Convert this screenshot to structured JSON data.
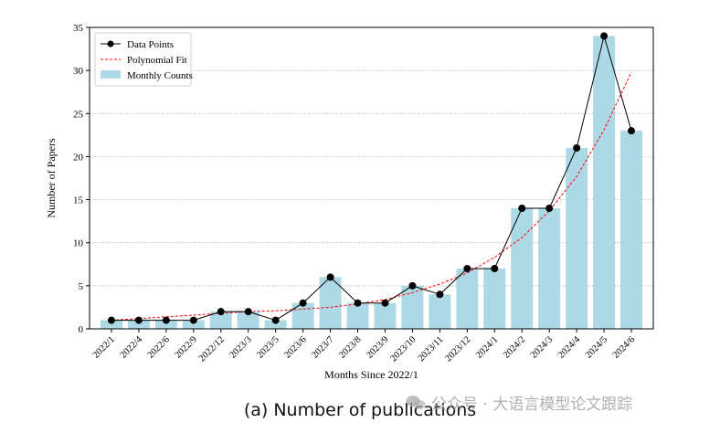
{
  "caption": "(a) Number of publications",
  "watermark": "公众号 · 大语言模型论文跟踪",
  "colors": {
    "bar": "#add8e6",
    "line": "#000000",
    "fit": "#ff0000",
    "grid": "#9a9a9a"
  },
  "chart_data": {
    "type": "bar",
    "xlabel": "Months Since 2022/1",
    "ylabel": "Number of Papers",
    "ylim": [
      0,
      35
    ],
    "yticks": [
      0,
      5,
      10,
      15,
      20,
      25,
      30,
      35
    ],
    "grid": "horizontal dotted",
    "legend_position": "top-left",
    "categories": [
      "2022/1",
      "2022/4",
      "2022/6",
      "2022/9",
      "2022/12",
      "2023/3",
      "2023/5",
      "2023/6",
      "2023/7",
      "2023/8",
      "2023/9",
      "2023/10",
      "2023/11",
      "2023/12",
      "2024/1",
      "2024/2",
      "2024/3",
      "2024/4",
      "2024/5",
      "2024/6"
    ],
    "series": [
      {
        "name": "Monthly Counts",
        "kind": "bar",
        "values": [
          1,
          1,
          1,
          1,
          2,
          2,
          1,
          3,
          6,
          3,
          3,
          5,
          4,
          7,
          7,
          14,
          14,
          21,
          34,
          23
        ]
      },
      {
        "name": "Data Points",
        "kind": "line-marker",
        "values": [
          1,
          1,
          1,
          1,
          2,
          2,
          1,
          3,
          6,
          3,
          3,
          5,
          4,
          7,
          7,
          14,
          14,
          21,
          34,
          23
        ]
      },
      {
        "name": "Polynomial Fit",
        "kind": "dashed-line",
        "values": [
          1.0,
          1.2,
          1.4,
          1.6,
          1.8,
          2.0,
          2.1,
          2.3,
          2.5,
          2.9,
          3.4,
          4.2,
          5.2,
          6.5,
          8.3,
          10.6,
          13.7,
          17.7,
          23.1,
          29.8
        ]
      }
    ]
  }
}
